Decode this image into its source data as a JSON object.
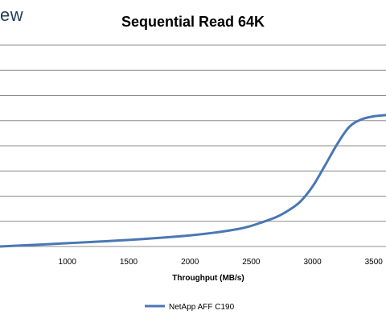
{
  "brand_text": "ew",
  "chart_data": {
    "type": "line",
    "title": "Sequential Read 64K",
    "xlabel": "Throughput (MB/s)",
    "ylabel": "",
    "xlim": [
      450,
      3600
    ],
    "ylim": [
      0,
      8
    ],
    "x_ticks": [
      1000,
      1500,
      2000,
      2500,
      3000,
      3500
    ],
    "x_tick_labels": [
      "1000",
      "1500",
      "2000",
      "2500",
      "3000",
      "3500"
    ],
    "grid": "horizontal",
    "legend_position": "bottom",
    "series": [
      {
        "name": "NetApp AFF C190",
        "color": "#4a77b4",
        "x": [
          450,
          800,
          1000,
          1200,
          1500,
          1800,
          2000,
          2200,
          2400,
          2500,
          2600,
          2700,
          2800,
          2900,
          3000,
          3100,
          3200,
          3300,
          3400,
          3500,
          3600
        ],
        "y": [
          0.0,
          0.08,
          0.13,
          0.18,
          0.26,
          0.36,
          0.44,
          0.55,
          0.7,
          0.82,
          0.98,
          1.16,
          1.42,
          1.78,
          2.38,
          3.2,
          4.05,
          4.75,
          5.05,
          5.17,
          5.22
        ]
      }
    ]
  }
}
